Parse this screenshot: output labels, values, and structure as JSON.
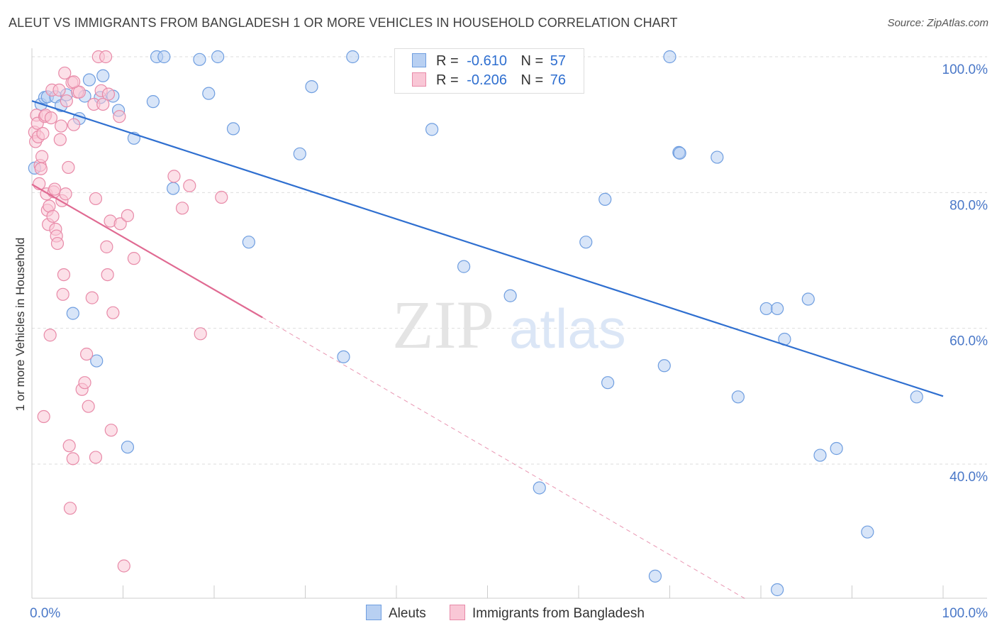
{
  "title": "ALEUT VS IMMIGRANTS FROM BANGLADESH 1 OR MORE VEHICLES IN HOUSEHOLD CORRELATION CHART",
  "source": "Source: ZipAtlas.com",
  "watermark": {
    "zip": "ZIP",
    "atlas": "atlas"
  },
  "legend": {
    "r_label": "R =",
    "n_label": "N =",
    "rows": [
      {
        "r": "-0.610",
        "n": "57",
        "color": "#b8d0f2",
        "stroke": "#6f9ee0"
      },
      {
        "r": "-0.206",
        "n": "76",
        "color": "#f9c7d6",
        "stroke": "#e88aa8"
      }
    ]
  },
  "bottom_legend": [
    {
      "label": "Aleuts",
      "color": "#b8d0f2",
      "stroke": "#6f9ee0"
    },
    {
      "label": "Immigrants from Bangladesh",
      "color": "#f9c7d6",
      "stroke": "#e88aa8"
    }
  ],
  "chart_data": {
    "type": "scatter",
    "ylabel": "1 or more Vehicles in Household",
    "xlabel": "",
    "xlim": [
      0,
      100
    ],
    "ylim": [
      20,
      102
    ],
    "x_tick_labels": [
      {
        "value": 0,
        "label": "0.0%"
      },
      {
        "value": 100,
        "label": "100.0%"
      }
    ],
    "y_tick_labels": [
      {
        "value": 100,
        "label": "100.0%"
      },
      {
        "value": 80,
        "label": "80.0%"
      },
      {
        "value": 60,
        "label": "60.0%"
      },
      {
        "value": 40,
        "label": "40.0%"
      }
    ],
    "grid": true,
    "series": [
      {
        "color": "#6f9ee0",
        "fill": "#b8d0f2",
        "trend": {
          "x": [
            0,
            100
          ],
          "y": [
            93.5,
            50.0
          ],
          "dashed_to": null,
          "line_color": "#2f6fd0"
        },
        "points": [
          [
            0.3,
            83.6
          ],
          [
            1.0,
            93.0
          ],
          [
            1.4,
            94.0
          ],
          [
            1.7,
            94.1
          ],
          [
            2.6,
            94.1
          ],
          [
            3.2,
            92.8
          ],
          [
            3.8,
            94.4
          ],
          [
            4.5,
            62.2
          ],
          [
            5.2,
            90.9
          ],
          [
            5.8,
            94.2
          ],
          [
            6.3,
            96.6
          ],
          [
            7.1,
            55.2
          ],
          [
            7.5,
            94.0
          ],
          [
            7.8,
            97.2
          ],
          [
            8.9,
            94.2
          ],
          [
            9.5,
            92.1
          ],
          [
            10.5,
            42.5
          ],
          [
            11.2,
            88.0
          ],
          [
            13.3,
            93.4
          ],
          [
            13.7,
            100.0
          ],
          [
            14.5,
            100.0
          ],
          [
            15.5,
            80.6
          ],
          [
            18.4,
            99.6
          ],
          [
            19.4,
            94.6
          ],
          [
            20.4,
            100.0
          ],
          [
            22.1,
            89.4
          ],
          [
            23.8,
            72.7
          ],
          [
            29.4,
            85.7
          ],
          [
            30.7,
            95.6
          ],
          [
            34.2,
            55.8
          ],
          [
            35.2,
            100.0
          ],
          [
            43.9,
            89.3
          ],
          [
            47.4,
            69.1
          ],
          [
            52.5,
            64.8
          ],
          [
            55.7,
            36.5
          ],
          [
            60.8,
            72.7
          ],
          [
            62.9,
            79.0
          ],
          [
            63.2,
            52.0
          ],
          [
            68.4,
            23.5
          ],
          [
            69.4,
            54.5
          ],
          [
            70.0,
            100.0
          ],
          [
            71.0,
            85.9
          ],
          [
            71.1,
            85.8
          ],
          [
            75.2,
            85.2
          ],
          [
            77.5,
            49.9
          ],
          [
            80.6,
            62.9
          ],
          [
            81.8,
            21.5
          ],
          [
            81.8,
            62.9
          ],
          [
            82.6,
            58.4
          ],
          [
            85.2,
            64.3
          ],
          [
            86.5,
            41.3
          ],
          [
            88.3,
            42.3
          ],
          [
            91.7,
            30.0
          ],
          [
            97.1,
            49.9
          ]
        ]
      },
      {
        "color": "#e88aa8",
        "fill": "#f9c7d6",
        "trend": {
          "x": [
            0,
            25.3
          ],
          "y": [
            81.2,
            61.6
          ],
          "dashed_to": [
            78.5,
            20.0
          ],
          "line_color": "#e06a92"
        },
        "points": [
          [
            0.3,
            88.9
          ],
          [
            0.4,
            87.5
          ],
          [
            0.5,
            91.4
          ],
          [
            0.6,
            90.2
          ],
          [
            0.7,
            88.2
          ],
          [
            0.8,
            81.3
          ],
          [
            0.9,
            84.0
          ],
          [
            1.0,
            83.5
          ],
          [
            1.1,
            85.3
          ],
          [
            1.2,
            88.7
          ],
          [
            1.3,
            47.0
          ],
          [
            1.4,
            91.2
          ],
          [
            1.5,
            91.4
          ],
          [
            1.6,
            79.8
          ],
          [
            1.7,
            77.4
          ],
          [
            1.8,
            75.3
          ],
          [
            1.9,
            78.0
          ],
          [
            2.0,
            59.0
          ],
          [
            2.1,
            91.0
          ],
          [
            2.2,
            95.1
          ],
          [
            2.3,
            76.5
          ],
          [
            2.4,
            80.1
          ],
          [
            2.5,
            80.5
          ],
          [
            2.6,
            74.6
          ],
          [
            2.7,
            73.6
          ],
          [
            2.8,
            72.5
          ],
          [
            3.0,
            95.1
          ],
          [
            3.1,
            87.8
          ],
          [
            3.2,
            89.8
          ],
          [
            3.3,
            78.8
          ],
          [
            3.4,
            65.0
          ],
          [
            3.5,
            67.9
          ],
          [
            3.6,
            97.6
          ],
          [
            3.7,
            79.8
          ],
          [
            3.8,
            93.5
          ],
          [
            4.0,
            83.7
          ],
          [
            4.1,
            42.7
          ],
          [
            4.2,
            33.5
          ],
          [
            4.4,
            96.2
          ],
          [
            4.5,
            40.8
          ],
          [
            4.6,
            90.0
          ],
          [
            5.0,
            94.8
          ],
          [
            5.2,
            94.8
          ],
          [
            5.5,
            51.0
          ],
          [
            5.8,
            52.0
          ],
          [
            6.0,
            56.2
          ],
          [
            6.2,
            48.5
          ],
          [
            6.6,
            64.5
          ],
          [
            6.8,
            93.0
          ],
          [
            7.0,
            41.0
          ],
          [
            7.0,
            79.1
          ],
          [
            7.3,
            100.0
          ],
          [
            7.6,
            95.0
          ],
          [
            7.8,
            93.0
          ],
          [
            8.1,
            100.0
          ],
          [
            8.2,
            72.0
          ],
          [
            8.3,
            67.9
          ],
          [
            8.4,
            94.5
          ],
          [
            8.6,
            75.8
          ],
          [
            8.7,
            45.0
          ],
          [
            8.9,
            62.3
          ],
          [
            9.6,
            91.2
          ],
          [
            9.7,
            75.4
          ],
          [
            10.1,
            25.0
          ],
          [
            10.5,
            76.6
          ],
          [
            11.2,
            70.3
          ],
          [
            15.6,
            82.4
          ],
          [
            16.5,
            77.7
          ],
          [
            17.3,
            81.0
          ],
          [
            18.5,
            59.2
          ],
          [
            20.8,
            79.3
          ],
          [
            4.6,
            96.3
          ]
        ]
      }
    ]
  }
}
